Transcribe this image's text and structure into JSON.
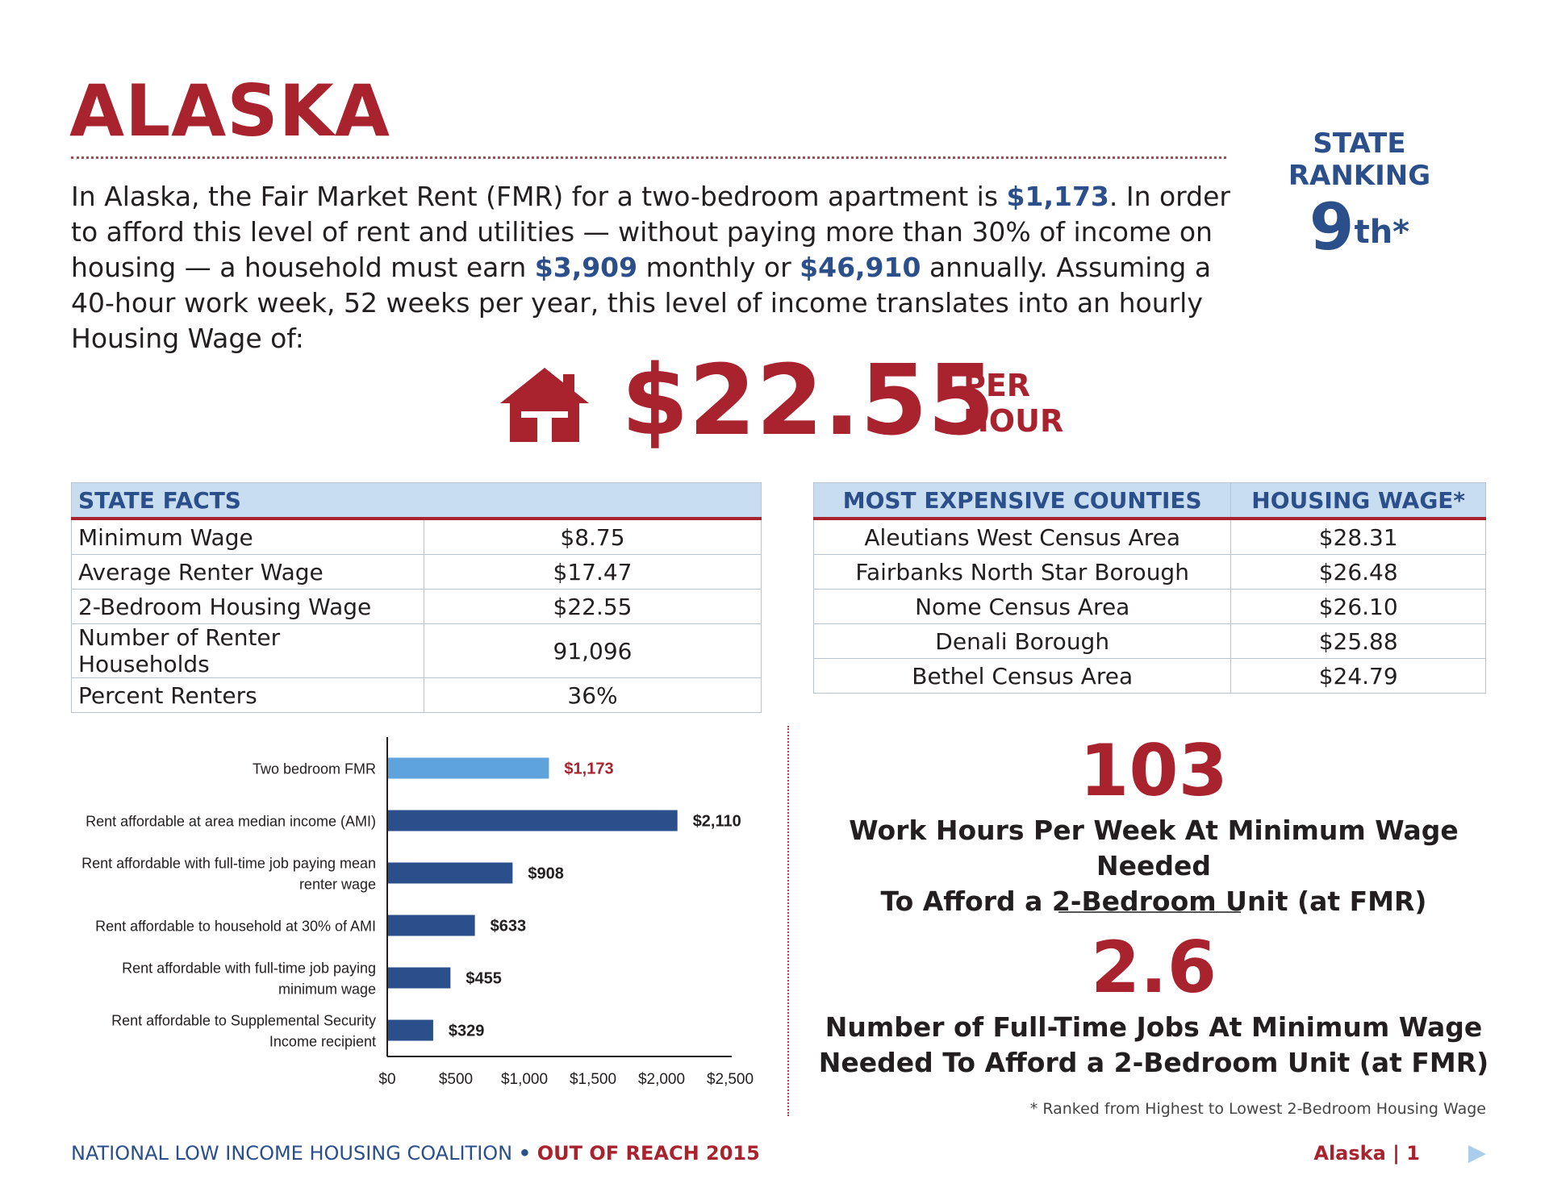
{
  "title": "ALASKA",
  "intro": {
    "t1": "In Alaska, the Fair Market Rent (FMR) for a two-bedroom apartment is ",
    "fmr": "$1,173",
    "t2": ". In order to afford this level of rent and utilities — without paying more than 30% of income on housing — a household must earn ",
    "monthly": "$3,909",
    "t3": " monthly or ",
    "annual": "$46,910",
    "t4": " annually. Assuming a 40-hour work week, 52 weeks per year, this level of income translates into an hourly Housing Wage of:"
  },
  "ranking": {
    "line1": "STATE",
    "line2": "RANKING",
    "rank": "9",
    "suffix": "th*"
  },
  "housing_wage": {
    "value": "$22.55",
    "unit_line1": "PER",
    "unit_line2": "HOUR",
    "icon": "house-icon"
  },
  "state_facts": {
    "header": "STATE FACTS",
    "rows": [
      {
        "label": "Minimum Wage",
        "value": "$8.75"
      },
      {
        "label": "Average Renter Wage",
        "value": "$17.47"
      },
      {
        "label": "2-Bedroom Housing Wage",
        "value": "$22.55"
      },
      {
        "label": "Number of Renter Households",
        "value": "91,096"
      },
      {
        "label": "Percent Renters",
        "value": "36%"
      }
    ]
  },
  "counties": {
    "header_county": "MOST EXPENSIVE COUNTIES",
    "header_wage": "HOUSING WAGE*",
    "rows": [
      {
        "county": "Aleutians West Census Area",
        "wage": "$28.31"
      },
      {
        "county": "Fairbanks North Star Borough",
        "wage": "$26.48"
      },
      {
        "county": "Nome Census Area",
        "wage": "$26.10"
      },
      {
        "county": "Denali Borough",
        "wage": "$25.88"
      },
      {
        "county": "Bethel Census Area",
        "wage": "$24.79"
      }
    ]
  },
  "chart_data": {
    "type": "bar",
    "orientation": "horizontal",
    "categories": [
      [
        "Two bedroom FMR"
      ],
      [
        "Rent affordable at area median income (AMI)"
      ],
      [
        "Rent affordable with full-time job paying mean",
        "renter wage"
      ],
      [
        "Rent affordable to household at 30% of AMI"
      ],
      [
        "Rent affordable with full-time job paying",
        "minimum wage"
      ],
      [
        "Rent affordable to Supplemental Security",
        "Income recipient"
      ]
    ],
    "values": [
      1173,
      2110,
      908,
      633,
      455,
      329
    ],
    "value_labels": [
      "$1,173",
      "$2,110",
      "$908",
      "$633",
      "$455",
      "$329"
    ],
    "xlim": [
      0,
      2500
    ],
    "xticks": [
      0,
      500,
      1000,
      1500,
      2000,
      2500
    ],
    "xtick_labels": [
      "$0",
      "$500",
      "$1,000",
      "$1,500",
      "$2,000",
      "$2,500"
    ],
    "colors": {
      "highlight": "#5fa3dc",
      "bar": "#2b4f8a",
      "highlight_label": "#a8232e",
      "label": "#231f20"
    }
  },
  "stats": {
    "hours_value": "103",
    "hours_label_1": "Work Hours Per Week At Minimum Wage Needed",
    "hours_label_2": "To Afford a 2-Bedroom Unit (at FMR)",
    "jobs_value": "2.6",
    "jobs_label_1": "Number of Full-Time Jobs At Minimum Wage",
    "jobs_label_2": "Needed To Afford a 2-Bedroom Unit (at FMR)"
  },
  "footnote": "* Ranked from Highest to Lowest 2-Bedroom Housing Wage",
  "footer": {
    "org": "NATIONAL LOW INCOME HOUSING COALITION",
    "separator": "•",
    "publication": "OUT OF REACH 2015",
    "page_label": "Alaska",
    "page_sep": "|",
    "page_number": "1",
    "next_icon": "next-page-arrow-icon"
  }
}
